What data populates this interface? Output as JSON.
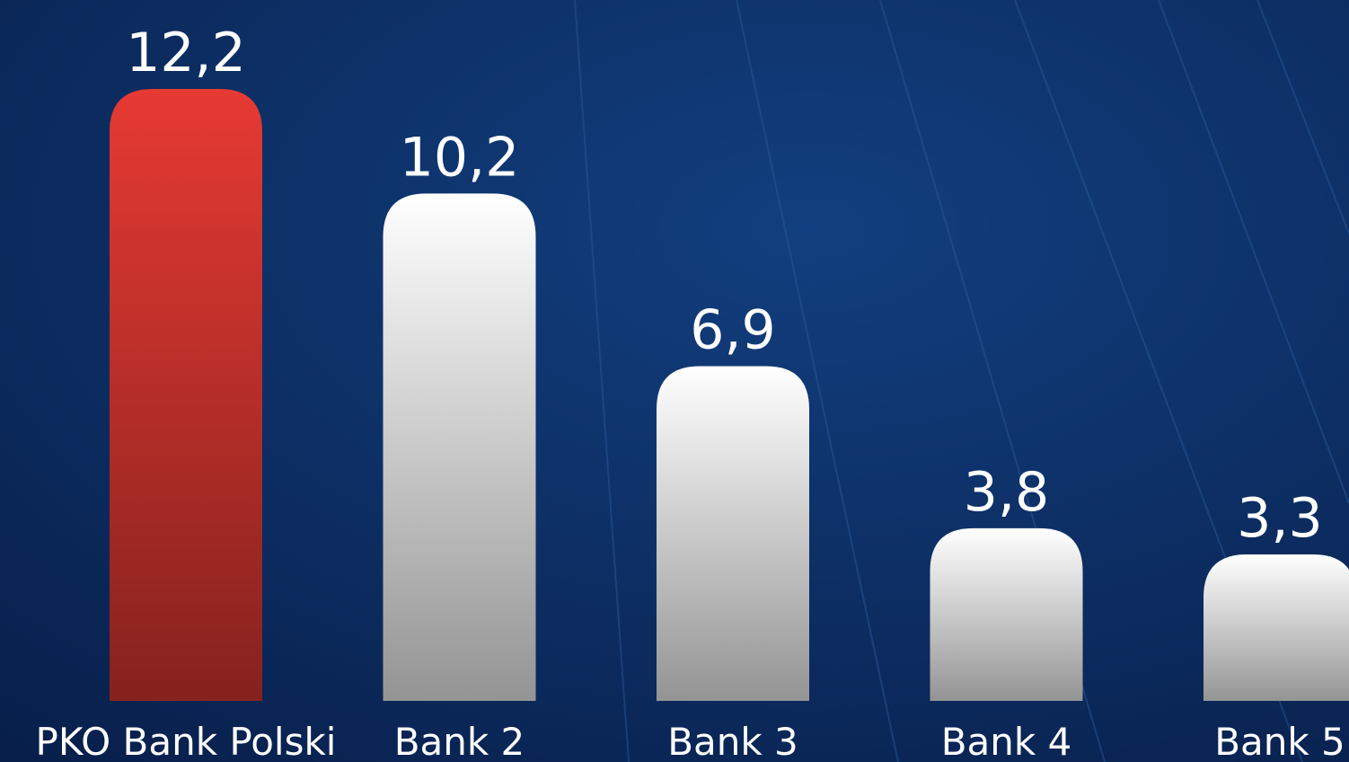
{
  "chart_data": {
    "type": "bar",
    "categories": [
      "PKO Bank Polski",
      "Bank 2",
      "Bank 3",
      "Bank 4",
      "Bank 5"
    ],
    "values": [
      12.2,
      10.2,
      6.9,
      3.8,
      3.3
    ],
    "value_labels": [
      "12,2",
      "10,2",
      "6,9",
      "3,8",
      "3,3"
    ],
    "colors": [
      "#e63a33",
      "#ffffff",
      "#ffffff",
      "#ffffff",
      "#ffffff"
    ],
    "ylim": [
      0.5,
      13.9
    ]
  }
}
